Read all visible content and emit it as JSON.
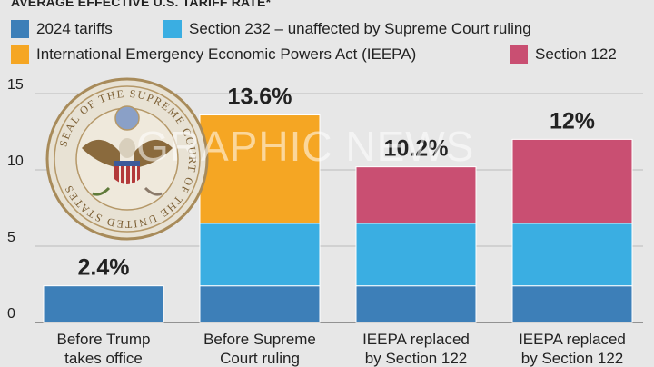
{
  "title": "AVERAGE EFFECTIVE U.S. TARIFF RATE*",
  "legend": [
    {
      "label": "2024 tariffs",
      "color": "#3d7fb8"
    },
    {
      "label": "Section 232 – unaffected by Supreme Court ruling",
      "color": "#3aaee2"
    },
    {
      "label": "International Emergency Economic Powers Act (IEEPA)",
      "color": "#f5a623"
    },
    {
      "label": "Section 122",
      "color": "#c94f72"
    }
  ],
  "watermark": "GRAPHIC NEWS",
  "seal": {
    "icon": "supreme-court-seal-icon",
    "text": "SEAL OF THE SUPREME COURT OF THE UNITED STATES"
  },
  "chart_data": {
    "type": "bar",
    "stacked": true,
    "categories": [
      [
        "Before Trump",
        "takes office"
      ],
      [
        "Before Supreme",
        "Court ruling"
      ],
      [
        "IEEPA replaced",
        "by Section 122"
      ],
      [
        "IEEPA replaced",
        "by Section 122"
      ]
    ],
    "series": [
      {
        "name": "2024 tariffs",
        "color": "#3d7fb8",
        "values": [
          2.4,
          2.4,
          2.4,
          2.4
        ]
      },
      {
        "name": "Section 232 – unaffected by Supreme Court ruling",
        "color": "#3aaee2",
        "values": [
          0,
          4.1,
          4.1,
          4.1
        ]
      },
      {
        "name": "International Emergency Economic Powers Act (IEEPA)",
        "color": "#f5a623",
        "values": [
          0,
          7.1,
          0,
          0
        ]
      },
      {
        "name": "Section 122",
        "color": "#c94f72",
        "values": [
          0,
          0,
          3.7,
          5.5
        ]
      }
    ],
    "totals": [
      "2.4%",
      "13.6%",
      "10.2%",
      "12%"
    ],
    "ylim": [
      0,
      15
    ],
    "yticks": [
      0,
      5,
      10,
      15
    ],
    "grid": true
  }
}
